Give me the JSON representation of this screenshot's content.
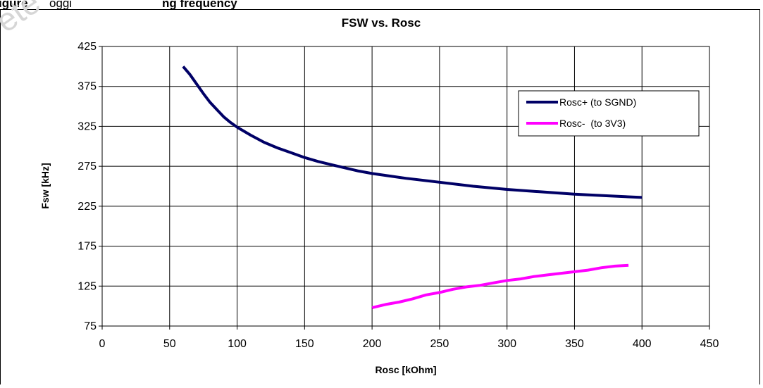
{
  "caption": {
    "prefix": "igure",
    "middle": "oggi",
    "suffix": "ng frequency"
  },
  "watermark": "ete",
  "chart_data": {
    "type": "line",
    "title": "FSW vs. Rosc",
    "xlabel": "Rosc [kOhm]",
    "ylabel": "Fsw [kHz]",
    "xlim": [
      0,
      450
    ],
    "ylim": [
      75,
      425
    ],
    "x_ticks": [
      0,
      50,
      100,
      150,
      200,
      250,
      300,
      350,
      400,
      450
    ],
    "y_ticks": [
      75,
      125,
      175,
      225,
      275,
      325,
      375,
      425
    ],
    "grid": true,
    "legend_position": "top-right",
    "series": [
      {
        "name": "Rosc+ (to SGND)",
        "color": "#000066",
        "x": [
          60,
          65,
          70,
          75,
          80,
          85,
          90,
          95,
          100,
          110,
          120,
          130,
          140,
          150,
          160,
          170,
          180,
          190,
          200,
          225,
          250,
          275,
          300,
          325,
          350,
          375,
          400
        ],
        "y": [
          400,
          390,
          378,
          366,
          355,
          346,
          337,
          330,
          324,
          314,
          305,
          298,
          292,
          286,
          281,
          277,
          273,
          269,
          266,
          260,
          255,
          250,
          246,
          243,
          240,
          238,
          236
        ]
      },
      {
        "name": "Rosc-  (to 3V3)",
        "color": "#ff00ff",
        "x": [
          200,
          210,
          220,
          230,
          240,
          250,
          260,
          270,
          280,
          290,
          300,
          310,
          320,
          330,
          340,
          350,
          360,
          370,
          380,
          390
        ],
        "y": [
          98,
          102,
          105,
          109,
          114,
          117,
          121,
          124,
          126,
          129,
          132,
          134,
          137,
          139,
          141,
          143,
          145,
          148,
          150,
          151
        ]
      }
    ]
  }
}
